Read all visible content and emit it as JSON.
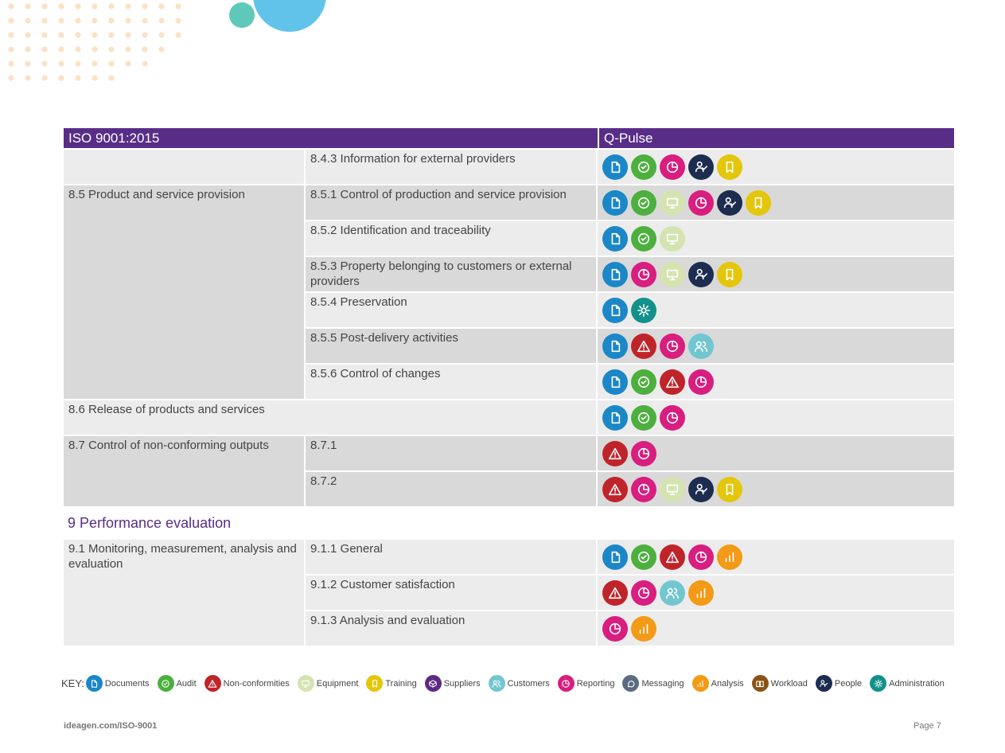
{
  "table": {
    "header": {
      "iso": "ISO 9001:2015",
      "qpulse": "Q-Pulse"
    },
    "row_843": {
      "sub": "8.4.3 Information for external providers",
      "icons": [
        "documents",
        "audit",
        "reporting",
        "people",
        "training"
      ]
    },
    "group_85": {
      "label": "8.5 Product and service provision",
      "rows": [
        {
          "sub": "8.5.1 Control of production and service provision",
          "icons": [
            "documents",
            "audit",
            "equipment",
            "reporting",
            "people",
            "training"
          ]
        },
        {
          "sub": "8.5.2 Identification and traceability",
          "icons": [
            "documents",
            "audit",
            "equipment"
          ]
        },
        {
          "sub": "8.5.3 Property belonging to customers or external providers",
          "icons": [
            "documents",
            "reporting",
            "equipment",
            "people",
            "training"
          ]
        },
        {
          "sub": "8.5.4 Preservation",
          "icons": [
            "documents",
            "administration"
          ]
        },
        {
          "sub": "8.5.5 Post-delivery activities",
          "icons": [
            "documents",
            "nonconformities",
            "reporting",
            "customers"
          ]
        },
        {
          "sub": "8.5.6 Control of changes",
          "icons": [
            "documents",
            "audit",
            "nonconformities",
            "reporting"
          ]
        }
      ]
    },
    "row_86": {
      "label": "8.6 Release of products and services",
      "icons": [
        "documents",
        "audit",
        "reporting"
      ]
    },
    "group_87": {
      "label": "8.7 Control of non-conforming outputs",
      "rows": [
        {
          "sub": "8.7.1",
          "icons": [
            "nonconformities",
            "reporting"
          ]
        },
        {
          "sub": "8.7.2",
          "icons": [
            "nonconformities",
            "reporting",
            "equipment",
            "people",
            "training"
          ]
        }
      ]
    },
    "section_9": "9 Performance evaluation",
    "group_91": {
      "label": "9.1 Monitoring, measurement, analysis and evaluation",
      "rows": [
        {
          "sub": "9.1.1 General",
          "icons": [
            "documents",
            "audit",
            "nonconformities",
            "reporting",
            "analysis"
          ]
        },
        {
          "sub": "9.1.2 Customer satisfaction",
          "icons": [
            "nonconformities",
            "reporting",
            "customers",
            "analysis"
          ]
        },
        {
          "sub": "9.1.3 Analysis and evaluation",
          "icons": [
            "reporting",
            "analysis"
          ]
        }
      ]
    }
  },
  "key": {
    "label": "KEY:",
    "items": [
      {
        "icon": "documents",
        "label": "Documents"
      },
      {
        "icon": "audit",
        "label": "Audit"
      },
      {
        "icon": "nonconformities",
        "label": "Non-conformities"
      },
      {
        "icon": "equipment",
        "label": "Equipment"
      },
      {
        "icon": "training",
        "label": "Training"
      },
      {
        "icon": "suppliers",
        "label": "Suppliers"
      },
      {
        "icon": "customers",
        "label": "Customers"
      },
      {
        "icon": "reporting",
        "label": "Reporting"
      },
      {
        "icon": "messaging",
        "label": "Messaging"
      },
      {
        "icon": "analysis",
        "label": "Analysis"
      },
      {
        "icon": "workload",
        "label": "Workload"
      },
      {
        "icon": "people",
        "label": "People"
      },
      {
        "icon": "administration",
        "label": "Administration"
      }
    ]
  },
  "footer": {
    "url": "ideagen.com/ISO-9001",
    "page": "Page 7"
  },
  "colors": {
    "purple": "#582d87",
    "documents": "#1b87c7",
    "audit": "#4caf3e",
    "nonconformities": "#c0242b",
    "equipment": "#d5e3b0",
    "training": "#e4c60c",
    "suppliers": "#5e2a84",
    "customers": "#72c6d0",
    "reporting": "#d81e7e",
    "messaging": "#5b6b82",
    "analysis": "#f39a16",
    "workload": "#8a5316",
    "people": "#1d2d50",
    "administration": "#12918a"
  }
}
